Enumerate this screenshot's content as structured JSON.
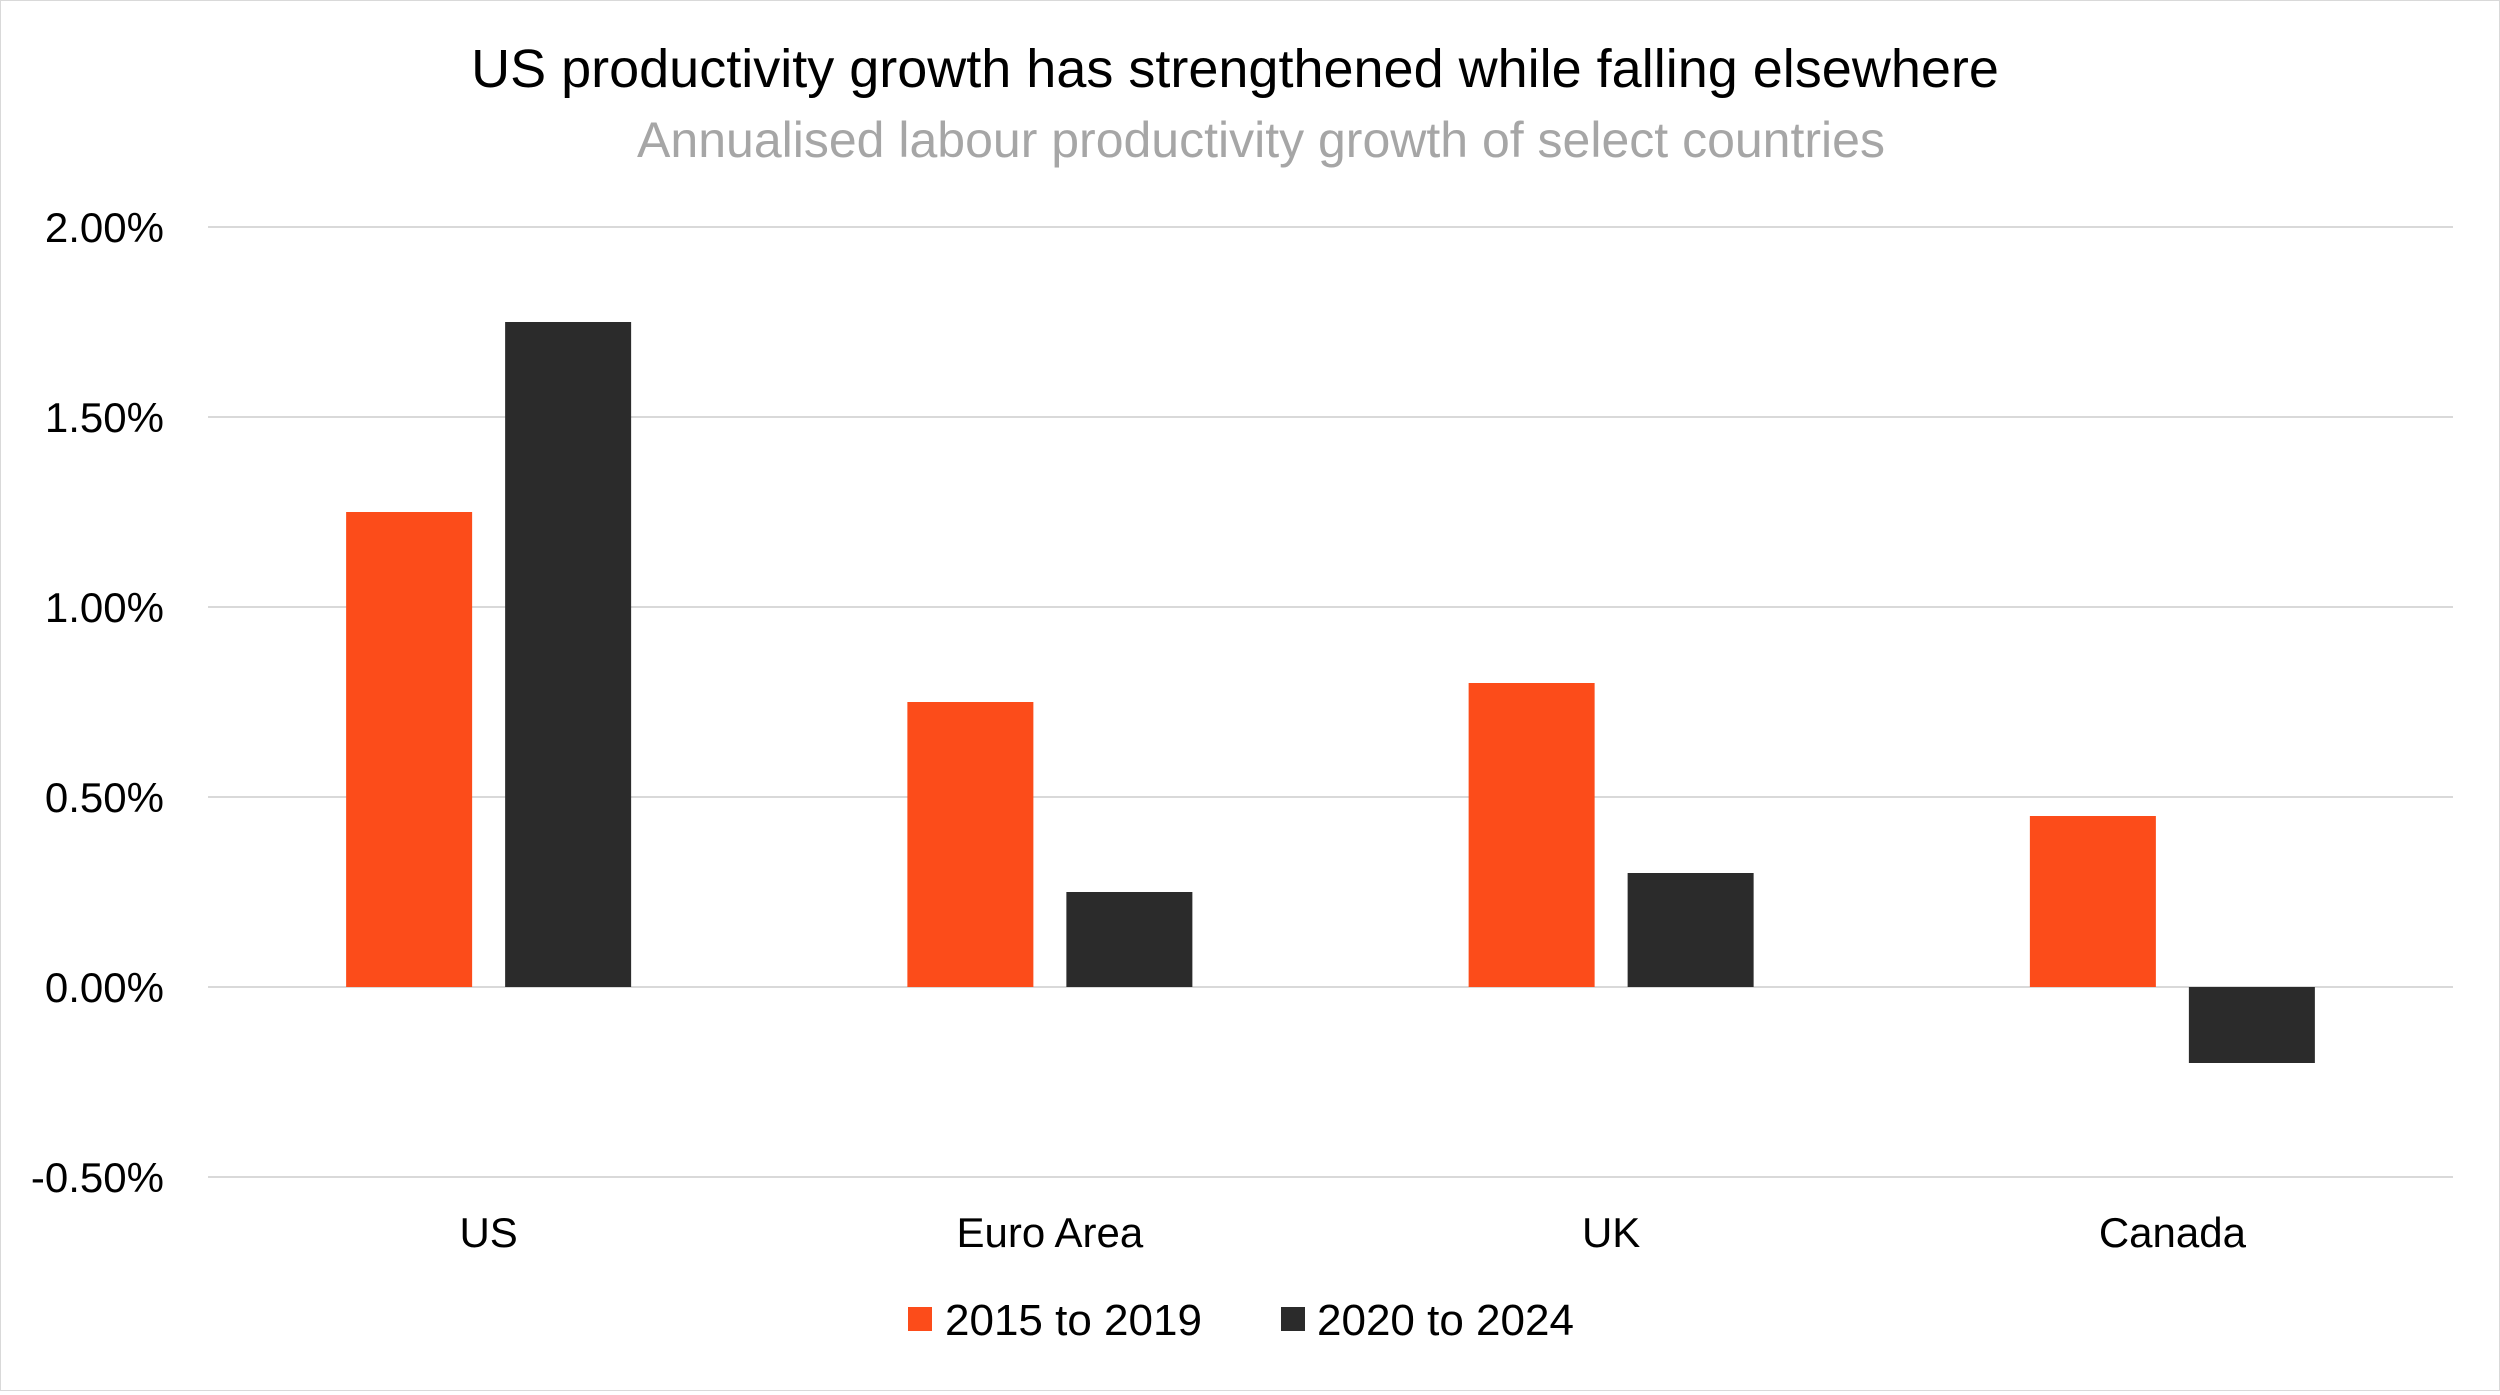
{
  "chart_data": {
    "type": "bar",
    "title": "US productivity growth has strengthened while falling elsewhere",
    "subtitle": "Annualised labour productivity growth of select countries",
    "categories": [
      "US",
      "Euro Area",
      "UK",
      "Canada"
    ],
    "series": [
      {
        "name": "2015 to 2019",
        "values": [
          1.25,
          0.75,
          0.8,
          0.45
        ],
        "color": "#fc4c1a"
      },
      {
        "name": "2020 to 2024",
        "values": [
          1.75,
          0.25,
          0.3,
          -0.2
        ],
        "color": "#2b2b2b"
      }
    ],
    "y_ticks": [
      {
        "value": 2.0,
        "label": "2.00%"
      },
      {
        "value": 1.5,
        "label": "1.50%"
      },
      {
        "value": 1.0,
        "label": "1.00%"
      },
      {
        "value": 0.5,
        "label": "0.50%"
      },
      {
        "value": 0.0,
        "label": "0.00%"
      },
      {
        "value": -0.5,
        "label": "-0.50%"
      }
    ],
    "ylim": [
      -0.5,
      2.0
    ],
    "xlabel": "",
    "ylabel": "",
    "grid": true,
    "legend_position": "bottom",
    "colors": {
      "title": "#000000",
      "subtitle": "#a6a6a6",
      "gridline": "#d9d9d9",
      "axis_text": "#000000"
    }
  }
}
